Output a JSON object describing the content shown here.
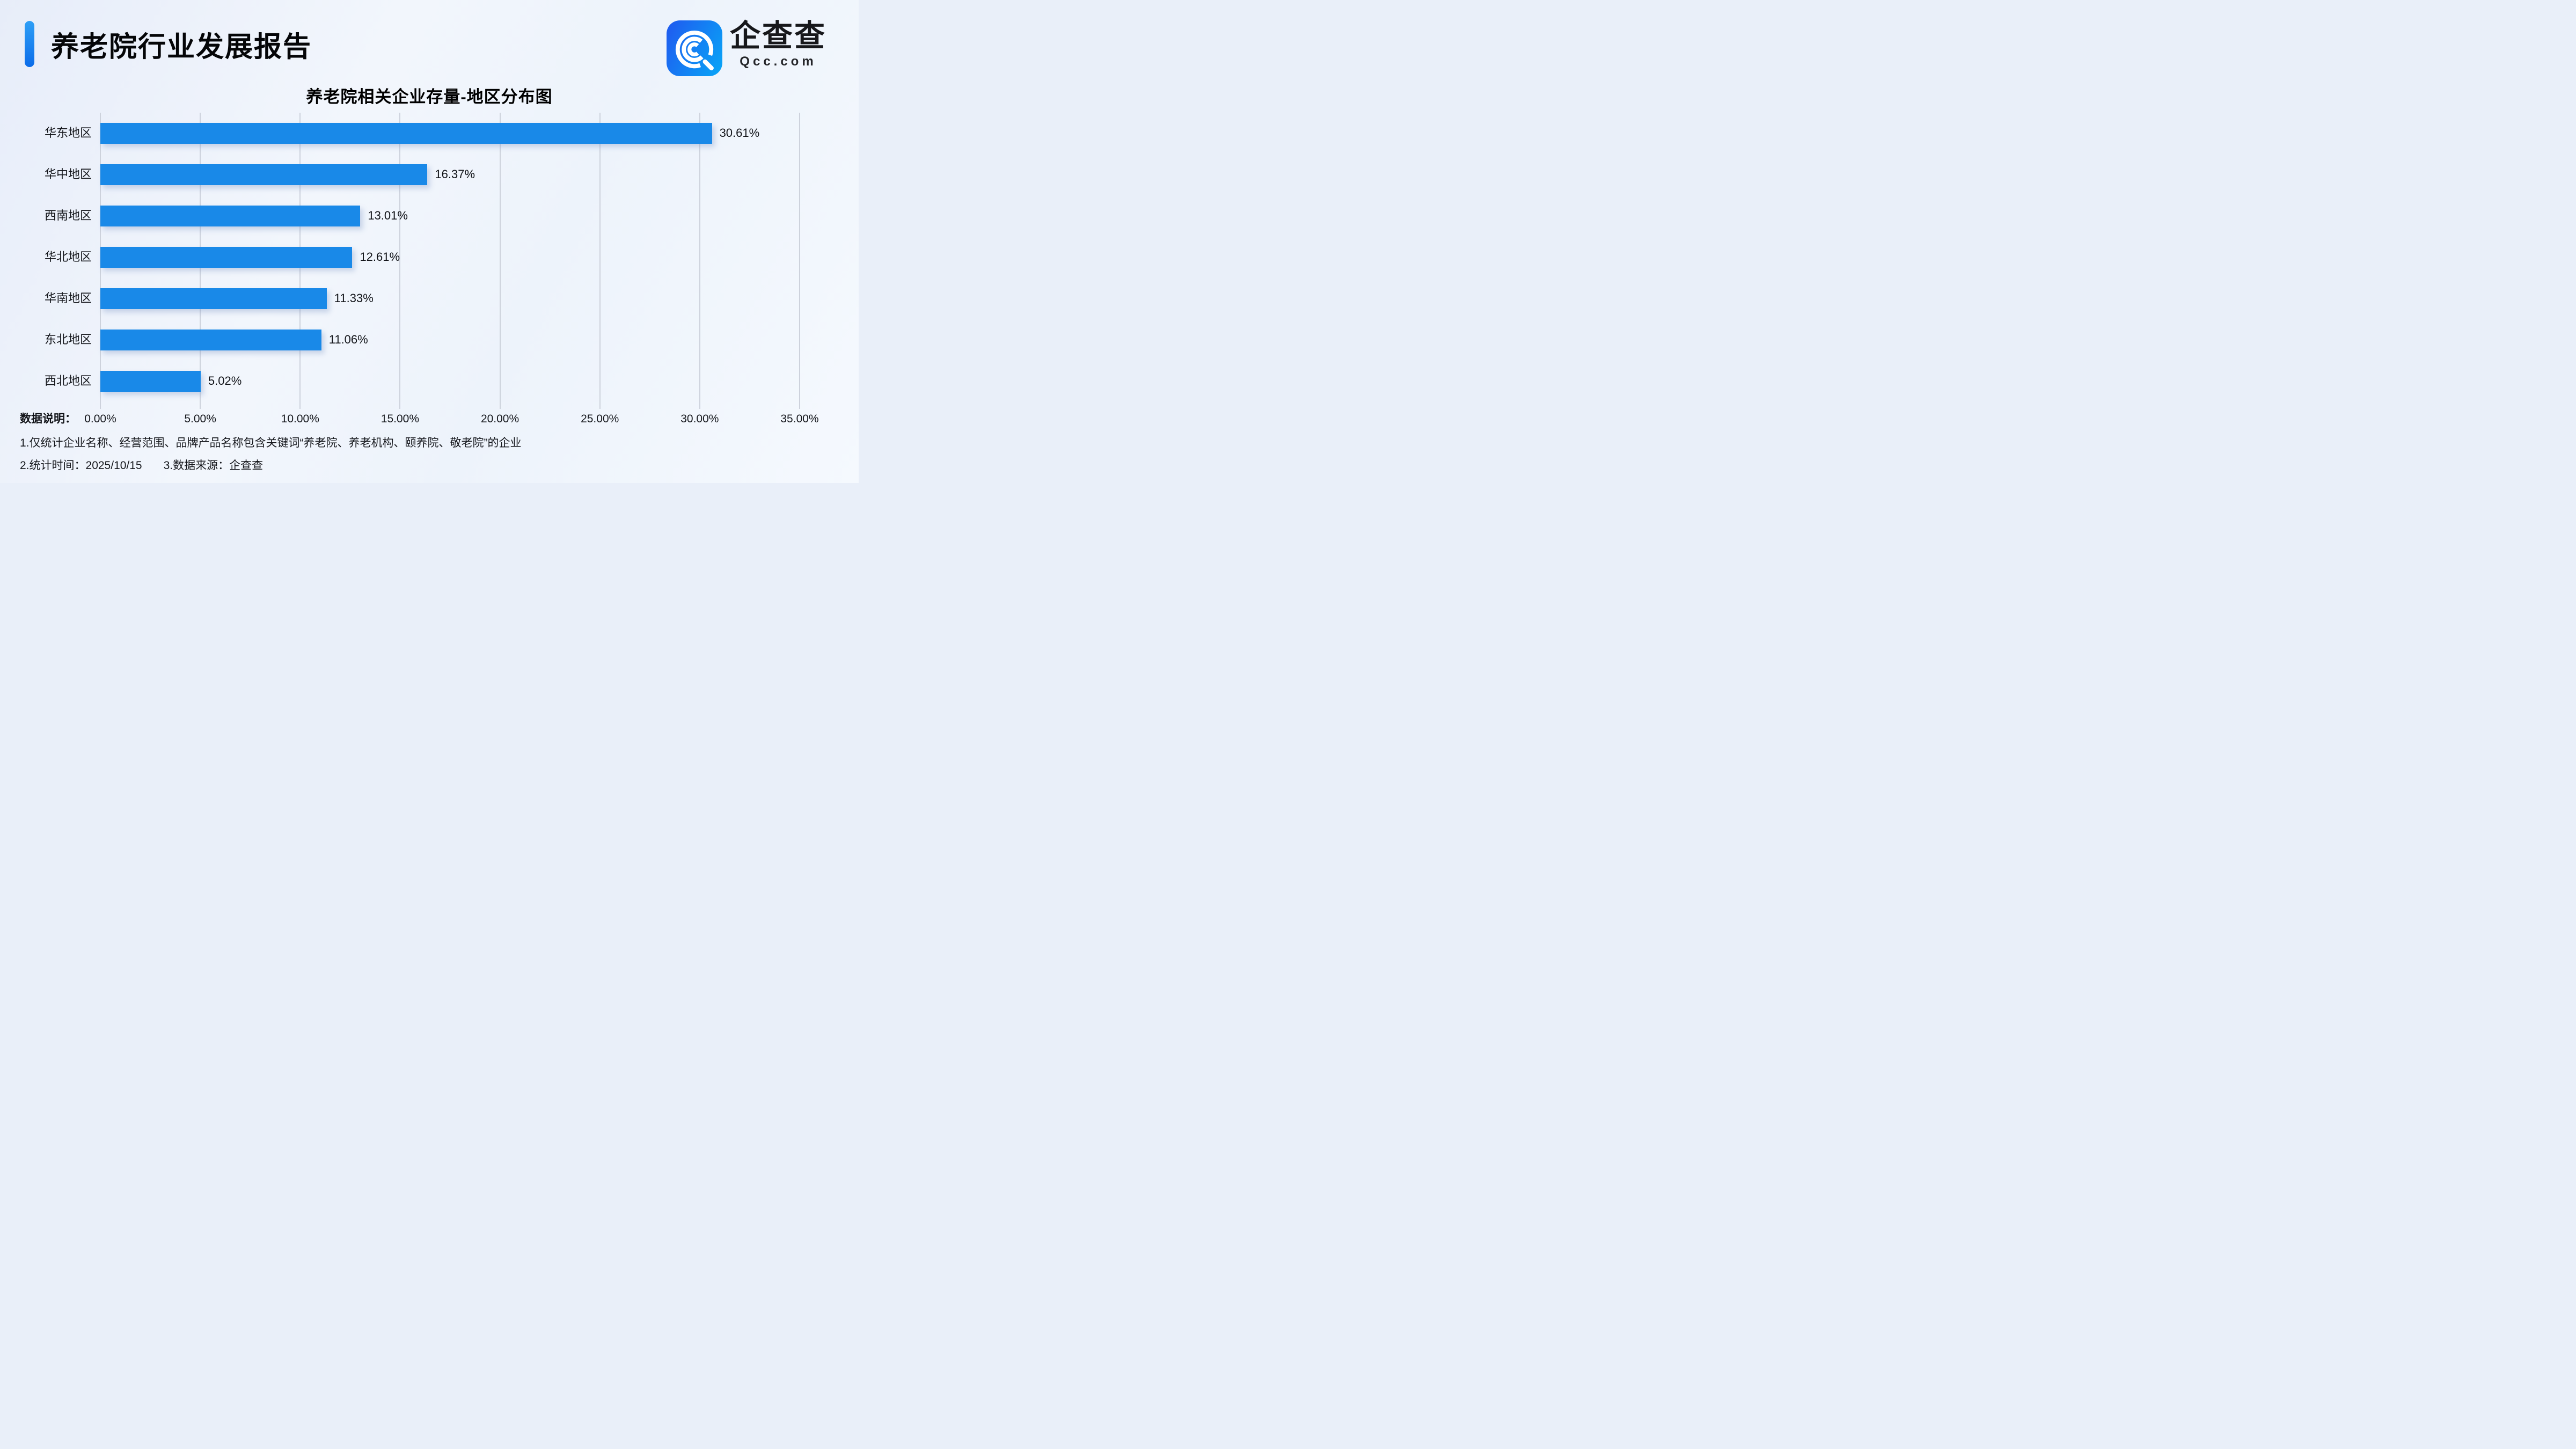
{
  "header": {
    "title": "养老院行业发展报告",
    "logo": {
      "brand_cn": "企查查",
      "brand_en": "Qcc.com",
      "icon": "qcc-magnifier-icon"
    }
  },
  "chart_data": {
    "type": "bar",
    "orientation": "horizontal",
    "title": "养老院相关企业存量-地区分布图",
    "categories": [
      "华东地区",
      "华中地区",
      "西南地区",
      "华北地区",
      "华南地区",
      "东北地区",
      "西北地区"
    ],
    "values": [
      30.61,
      16.37,
      13.01,
      12.61,
      11.33,
      11.06,
      5.02
    ],
    "value_labels": [
      "30.61%",
      "16.37%",
      "13.01%",
      "12.61%",
      "11.33%",
      "11.06%",
      "5.02%"
    ],
    "x_ticks": [
      "0.00%",
      "5.00%",
      "10.00%",
      "15.00%",
      "20.00%",
      "25.00%",
      "30.00%",
      "35.00%"
    ],
    "xlim": [
      0,
      35
    ],
    "grid": true,
    "legend": false,
    "bar_color": "#1989E8"
  },
  "footer": {
    "notes_label": "数据说明：",
    "note1": "1.仅统计企业名称、经营范围、品牌产品名称包含关键词“养老院、养老机构、颐养院、敬老院”的企业",
    "note2_time": "2.统计时间：2025/10/15",
    "note2_source": "3.数据来源：企查查"
  },
  "colors": {
    "bar": "#1989E8",
    "grid": "#CDD2DC",
    "accent_from": "#2E9FF6",
    "accent_to": "#0B6CE9",
    "logo_from": "#1E5FF0",
    "logo_to": "#0AA0F6",
    "background_from": "#E7EDF9",
    "background_to": "#EDF3FB",
    "text": "#121418"
  }
}
